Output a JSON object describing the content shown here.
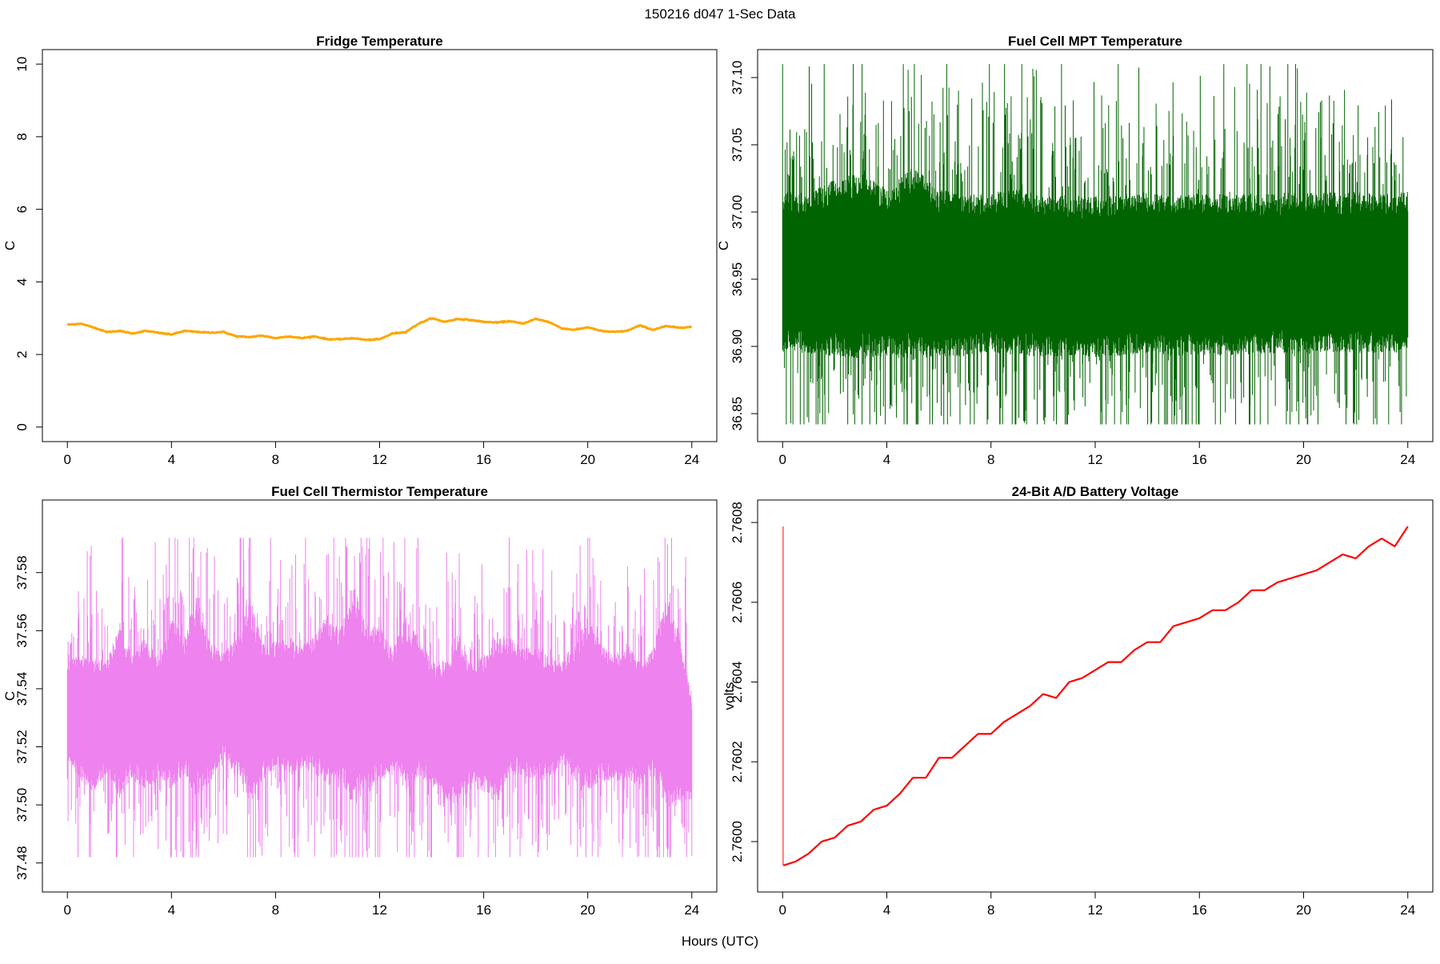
{
  "page": {
    "title": "150216   d047   1-Sec Data",
    "common_xlabel": "Hours (UTC)"
  },
  "chart_data": [
    {
      "type": "line",
      "title": "Fridge Temperature",
      "xlabel": "",
      "ylabel": "C",
      "xlim": [
        0,
        24
      ],
      "ylim": [
        0,
        10
      ],
      "xticks": [
        0,
        4,
        8,
        12,
        16,
        20,
        24
      ],
      "yticks": [
        0,
        2,
        4,
        6,
        8,
        10
      ],
      "ytick_labels": [
        "0",
        "2",
        "4",
        "6",
        "8",
        "10"
      ],
      "color": "#ffa500",
      "noise": 0.02,
      "series": [
        {
          "x": [
            0,
            0.5,
            1,
            1.5,
            2,
            2.5,
            3,
            3.5,
            4,
            4.5,
            5,
            5.5,
            6,
            6.5,
            7,
            7.5,
            8,
            8.5,
            9,
            9.5,
            10,
            10.5,
            11,
            11.5,
            12,
            12.5,
            13,
            13.5,
            14,
            14.5,
            15,
            15.5,
            16,
            16.5,
            17,
            17.5,
            18,
            18.5,
            19,
            19.5,
            20,
            20.5,
            21,
            21.5,
            22,
            22.5,
            23,
            23.5,
            24
          ],
          "values": [
            2.82,
            2.85,
            2.75,
            2.62,
            2.65,
            2.58,
            2.65,
            2.6,
            2.55,
            2.65,
            2.62,
            2.6,
            2.62,
            2.5,
            2.48,
            2.52,
            2.45,
            2.5,
            2.45,
            2.5,
            2.42,
            2.42,
            2.45,
            2.4,
            2.42,
            2.58,
            2.62,
            2.85,
            3.0,
            2.9,
            2.98,
            2.95,
            2.9,
            2.88,
            2.92,
            2.85,
            2.98,
            2.9,
            2.72,
            2.68,
            2.75,
            2.65,
            2.62,
            2.65,
            2.8,
            2.68,
            2.78,
            2.74,
            2.76
          ]
        }
      ]
    },
    {
      "type": "line",
      "title": "Fuel Cell MPT Temperature",
      "xlabel": "",
      "ylabel": "C",
      "xlim": [
        0,
        24
      ],
      "ylim": [
        36.84,
        37.11
      ],
      "xticks": [
        0,
        4,
        8,
        12,
        16,
        20,
        24
      ],
      "yticks": [
        36.85,
        36.9,
        36.95,
        37.0,
        37.05,
        37.1
      ],
      "ytick_labels": [
        "36.85",
        "36.90",
        "36.95",
        "37.00",
        "37.05",
        "37.10"
      ],
      "color": "#006400",
      "band": {
        "x": [
          0,
          1,
          2,
          3,
          4,
          5,
          6,
          7,
          8,
          9,
          10,
          11,
          12,
          13,
          14,
          15,
          16,
          17,
          18,
          19,
          20,
          21,
          22,
          23,
          24
        ],
        "center": [
          36.955,
          36.955,
          36.958,
          36.96,
          36.955,
          36.962,
          36.955,
          36.952,
          36.955,
          36.956,
          36.952,
          36.953,
          36.952,
          36.953,
          36.955,
          36.952,
          36.954,
          36.953,
          36.954,
          36.955,
          36.954,
          36.955,
          36.955,
          36.954,
          36.955
        ],
        "core_halfwidth": [
          0.05,
          0.05,
          0.055,
          0.058,
          0.052,
          0.06,
          0.052,
          0.05,
          0.05,
          0.052,
          0.05,
          0.05,
          0.05,
          0.05,
          0.05,
          0.05,
          0.05,
          0.05,
          0.05,
          0.05,
          0.05,
          0.05,
          0.05,
          0.05,
          0.05
        ],
        "spike_max": 37.11,
        "spike_min": 36.842
      }
    },
    {
      "type": "line",
      "title": "Fuel Cell Thermistor Temperature",
      "xlabel": "",
      "ylabel": "C",
      "xlim": [
        0,
        24
      ],
      "ylim": [
        37.475,
        37.6
      ],
      "xticks": [
        0,
        4,
        8,
        12,
        16,
        20,
        24
      ],
      "yticks": [
        37.48,
        37.5,
        37.52,
        37.54,
        37.56,
        37.58
      ],
      "ytick_labels": [
        "37.48",
        "37.50",
        "37.52",
        "37.54",
        "37.56",
        "37.58"
      ],
      "color": "#ee82ee",
      "band": {
        "x": [
          0,
          0.5,
          1,
          1.5,
          2,
          2.5,
          3,
          3.5,
          4,
          4.5,
          5,
          5.5,
          6,
          6.5,
          7,
          7.5,
          8,
          8.5,
          9,
          9.5,
          10,
          10.5,
          11,
          11.5,
          12,
          12.5,
          13,
          13.5,
          14,
          14.5,
          15,
          15.5,
          16,
          16.5,
          17,
          17.5,
          18,
          18.5,
          19,
          19.5,
          20,
          20.5,
          21,
          21.5,
          22,
          22.5,
          23,
          23.5,
          24
        ],
        "center": [
          37.532,
          37.53,
          37.528,
          37.53,
          37.532,
          37.53,
          37.532,
          37.53,
          37.535,
          37.534,
          37.538,
          37.532,
          37.535,
          37.533,
          37.536,
          37.532,
          37.535,
          37.534,
          37.533,
          37.535,
          37.536,
          37.535,
          37.538,
          37.534,
          37.535,
          37.533,
          37.535,
          37.534,
          37.528,
          37.526,
          37.53,
          37.527,
          37.528,
          37.53,
          37.534,
          37.532,
          37.532,
          37.53,
          37.532,
          37.532,
          37.535,
          37.532,
          37.53,
          37.532,
          37.528,
          37.532,
          37.535,
          37.53,
          37.52
        ],
        "core_halfwidth": [
          0.015,
          0.018,
          0.02,
          0.016,
          0.025,
          0.018,
          0.022,
          0.018,
          0.025,
          0.02,
          0.03,
          0.02,
          0.015,
          0.02,
          0.03,
          0.02,
          0.018,
          0.02,
          0.018,
          0.02,
          0.025,
          0.022,
          0.032,
          0.025,
          0.022,
          0.018,
          0.025,
          0.02,
          0.018,
          0.02,
          0.025,
          0.018,
          0.02,
          0.025,
          0.02,
          0.018,
          0.02,
          0.018,
          0.015,
          0.02,
          0.025,
          0.02,
          0.018,
          0.02,
          0.018,
          0.018,
          0.03,
          0.025,
          0.015
        ],
        "spike_max": 37.592,
        "spike_min": 37.482
      }
    },
    {
      "type": "line",
      "title": "24-Bit A/D Battery Voltage",
      "xlabel": "",
      "ylabel": "volts",
      "xlim": [
        0,
        24
      ],
      "ylim": [
        2.75991,
        2.76082
      ],
      "xticks": [
        0,
        4,
        8,
        12,
        16,
        20,
        24
      ],
      "yticks": [
        2.76,
        2.7602,
        2.7604,
        2.7606,
        2.7608
      ],
      "ytick_labels": [
        "2.7600",
        "2.7602",
        "2.7604",
        "2.7606",
        "2.7608"
      ],
      "color": "#ff0000",
      "initial_spike": {
        "x": 0.02,
        "low": 2.75994,
        "high": 2.76079
      },
      "series": [
        {
          "x": [
            0.03,
            0.5,
            1.0,
            1.5,
            2.0,
            2.5,
            3.0,
            3.5,
            4.0,
            4.5,
            5.0,
            5.5,
            6.0,
            6.5,
            7.0,
            7.5,
            8.0,
            8.5,
            9.0,
            9.5,
            10.0,
            10.5,
            11.0,
            11.5,
            12.0,
            12.5,
            13.0,
            13.5,
            14.0,
            14.5,
            15.0,
            15.5,
            16.0,
            16.5,
            17.0,
            17.5,
            18.0,
            18.5,
            19.0,
            19.5,
            20.0,
            20.5,
            21.0,
            21.5,
            22.0,
            22.5,
            23.0,
            23.5,
            24.0
          ],
          "values": [
            2.75994,
            2.75995,
            2.75997,
            2.76,
            2.76001,
            2.76004,
            2.76005,
            2.76008,
            2.76009,
            2.76012,
            2.76016,
            2.76016,
            2.76021,
            2.76021,
            2.76024,
            2.76027,
            2.76027,
            2.7603,
            2.76032,
            2.76034,
            2.76037,
            2.76036,
            2.7604,
            2.76041,
            2.76043,
            2.76045,
            2.76045,
            2.76048,
            2.7605,
            2.7605,
            2.76054,
            2.76055,
            2.76056,
            2.76058,
            2.76058,
            2.7606,
            2.76063,
            2.76063,
            2.76065,
            2.76066,
            2.76067,
            2.76068,
            2.7607,
            2.76072,
            2.76071,
            2.76074,
            2.76076,
            2.76074,
            2.76079
          ]
        }
      ]
    }
  ]
}
